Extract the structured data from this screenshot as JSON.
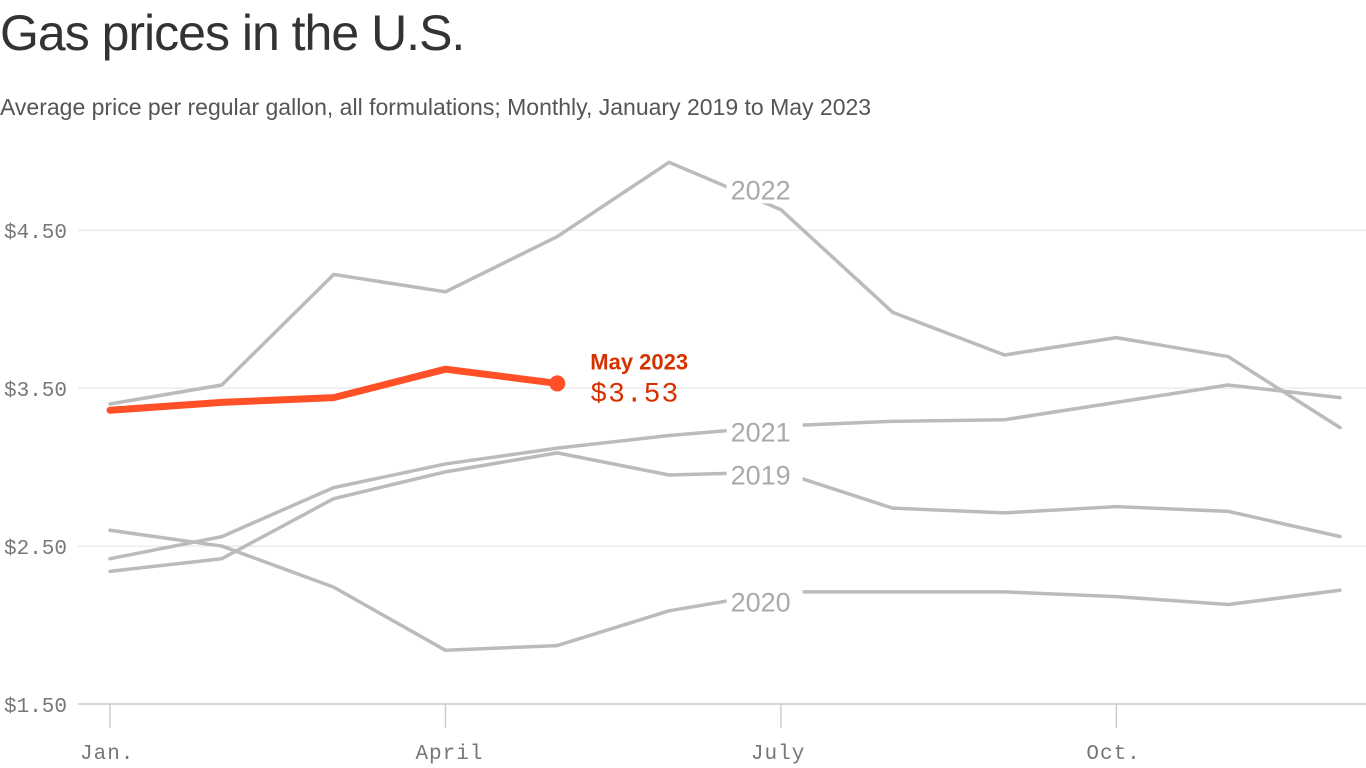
{
  "title": "Gas prices in the U.S.",
  "subtitle": "Average price per regular gallon, all formulations; Monthly, January 2019 to May 2023",
  "chart_data": {
    "type": "line",
    "x_tick_labels": [
      {
        "month": 1,
        "label": "Jan."
      },
      {
        "month": 4,
        "label": "April"
      },
      {
        "month": 7,
        "label": "July"
      },
      {
        "month": 10,
        "label": "Oct."
      }
    ],
    "xlim": [
      1,
      12
    ],
    "y_ticks": [
      1.5,
      2.5,
      3.5,
      4.5
    ],
    "y_tick_labels": [
      "$1.50",
      "$2.50",
      "$3.50",
      "$4.50"
    ],
    "ylim": [
      1.5,
      4.97
    ],
    "grid": true,
    "series": [
      {
        "name": "2019",
        "color": "#bbbbbb",
        "label_month": 6.55,
        "values": [
          2.34,
          2.42,
          2.8,
          2.97,
          3.09,
          2.95,
          2.97,
          2.74,
          2.71,
          2.75,
          2.72,
          2.56
        ]
      },
      {
        "name": "2020",
        "color": "#bbbbbb",
        "label_month": 6.55,
        "values": [
          2.6,
          2.5,
          2.24,
          1.84,
          1.87,
          2.09,
          2.21,
          2.21,
          2.21,
          2.18,
          2.13,
          2.22
        ]
      },
      {
        "name": "2021",
        "color": "#bbbbbb",
        "label_month": 6.55,
        "values": [
          2.42,
          2.56,
          2.87,
          3.02,
          3.12,
          3.2,
          3.26,
          3.29,
          3.3,
          3.41,
          3.52,
          3.44
        ]
      },
      {
        "name": "2022",
        "color": "#bbbbbb",
        "label_month": 6.55,
        "values": [
          3.4,
          3.52,
          4.22,
          4.11,
          4.46,
          4.93,
          4.63,
          3.98,
          3.71,
          3.82,
          3.7,
          3.25
        ]
      },
      {
        "name": "2023",
        "color": "#ff5027",
        "highlight": true,
        "values": [
          3.36,
          3.41,
          3.44,
          3.62,
          3.53
        ]
      }
    ],
    "annotation": {
      "title": "May 2023",
      "value": "$3.53"
    }
  }
}
